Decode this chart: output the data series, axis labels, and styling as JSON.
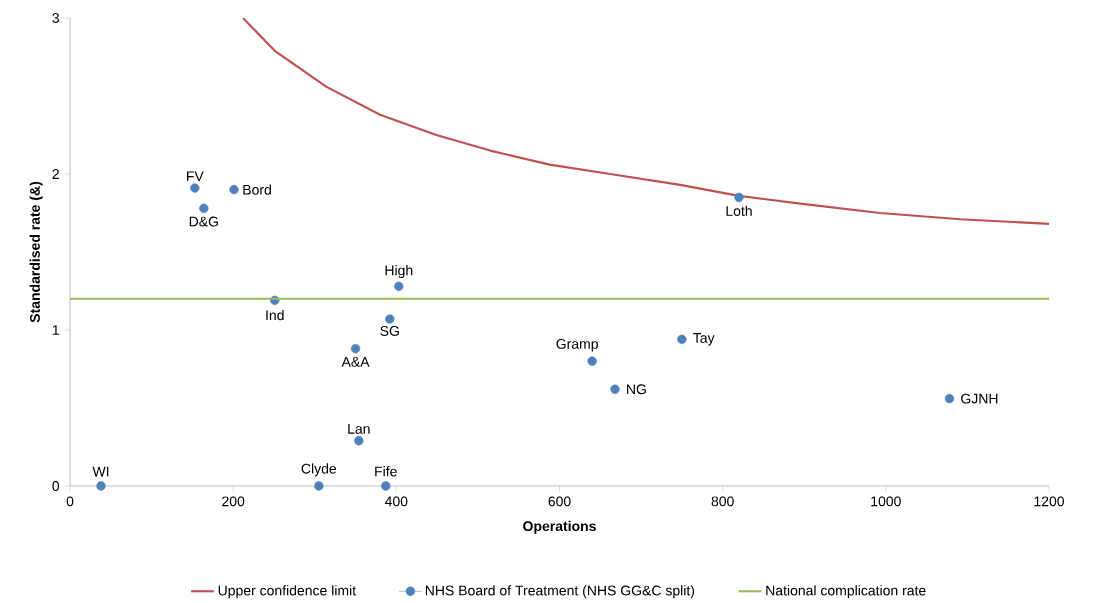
{
  "chart_data": {
    "type": "scatter",
    "xlabel": "Operations",
    "ylabel": "Standardised rate (&)",
    "xlim": [
      0,
      1200
    ],
    "ylim": [
      0,
      3
    ],
    "xticks": [
      0,
      200,
      400,
      600,
      800,
      1000,
      1200
    ],
    "yticks": [
      0,
      1,
      2,
      3
    ],
    "grid": false,
    "legend": "bottom",
    "series": [
      {
        "name": "Upper confidence limit",
        "type": "line",
        "color": "#c0504d",
        "marker": "none",
        "line_style": "solid",
        "x": [
          212,
          251,
          314,
          380,
          449,
          515,
          588,
          662,
          748,
          820,
          895,
          993,
          1091,
          1200
        ],
        "values": [
          3.0,
          2.79,
          2.56,
          2.38,
          2.25,
          2.15,
          2.06,
          2.0,
          1.93,
          1.86,
          1.81,
          1.75,
          1.71,
          1.68
        ]
      },
      {
        "name": "NHS Board of Treatment (NHS GG&C split)",
        "color": "#4f81bd",
        "marker": "circle",
        "x": [
          38,
          153,
          164,
          201,
          251,
          403,
          392,
          350,
          354,
          305,
          387,
          640,
          668,
          750,
          820,
          1078
        ],
        "values": [
          0,
          1.91,
          1.78,
          1.9,
          1.19,
          1.28,
          1.07,
          0.88,
          0.29,
          0,
          0,
          0.8,
          0.62,
          0.94,
          1.85,
          0.56
        ]
      },
      {
        "name": "National complication rate",
        "type": "line",
        "color": "#9bbb59",
        "marker": "none",
        "line_style": "solid",
        "x": [
          0,
          1200
        ],
        "values": [
          1.2,
          1.2
        ]
      }
    ],
    "annotations": [
      {
        "text": "WI",
        "x": 38,
        "y": 0
      },
      {
        "text": "FV",
        "x": 153,
        "y": 1.91
      },
      {
        "text": "D&G",
        "x": 164,
        "y": 1.78
      },
      {
        "text": "Bord",
        "x": 201,
        "y": 1.9
      },
      {
        "text": "Ind",
        "x": 251,
        "y": 1.19
      },
      {
        "text": "High",
        "x": 403,
        "y": 1.28
      },
      {
        "text": "SG",
        "x": 392,
        "y": 1.07
      },
      {
        "text": "A&A",
        "x": 350,
        "y": 0.88
      },
      {
        "text": "Lan",
        "x": 354,
        "y": 0.29
      },
      {
        "text": "Clyde",
        "x": 305,
        "y": 0
      },
      {
        "text": "Fife",
        "x": 387,
        "y": 0
      },
      {
        "text": "Gramp",
        "x": 640,
        "y": 0.8
      },
      {
        "text": "NG",
        "x": 668,
        "y": 0.62
      },
      {
        "text": "Tay",
        "x": 750,
        "y": 0.94
      },
      {
        "text": "Loth",
        "x": 820,
        "y": 1.85
      },
      {
        "text": "GJNH",
        "x": 1078,
        "y": 0.56
      }
    ]
  }
}
